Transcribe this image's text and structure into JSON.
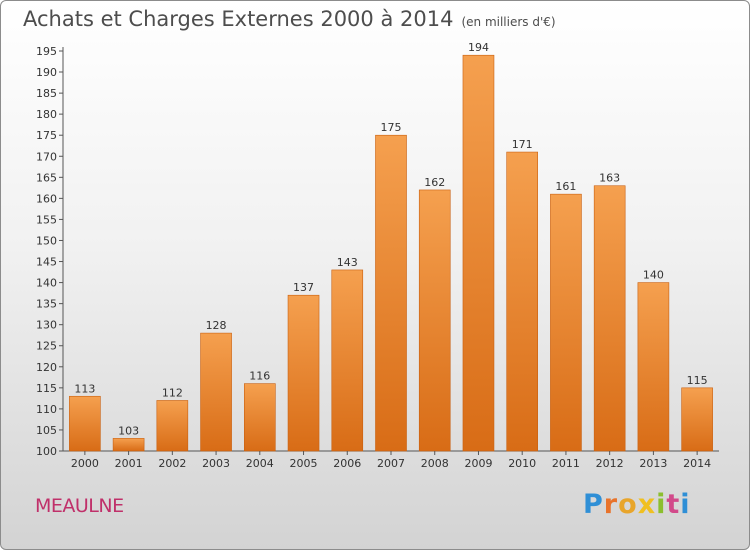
{
  "header": {
    "title": "Achats et Charges Externes 2000 à 2014",
    "subtitle": "(en milliers d'€)"
  },
  "footer": {
    "commune": "MEAULNE",
    "logo": "Proxiti"
  },
  "colors": {
    "bar_top": "#f5a04f",
    "bar_bottom": "#d86c16",
    "bar_edge": "#c96010",
    "commune_text": "#c0306a"
  },
  "chart_data": {
    "type": "bar",
    "title": "Achats et Charges Externes 2000 à 2014",
    "subtitle": "(en milliers d'€)",
    "categories": [
      "2000",
      "2001",
      "2002",
      "2003",
      "2004",
      "2005",
      "2006",
      "2007",
      "2008",
      "2009",
      "2010",
      "2011",
      "2012",
      "2013",
      "2014"
    ],
    "values": [
      113,
      103,
      112,
      128,
      116,
      137,
      143,
      175,
      162,
      194,
      171,
      161,
      163,
      140,
      115
    ],
    "ylim": [
      100,
      195
    ],
    "ytick_step": 5,
    "grid": false,
    "legend": "none",
    "data_labels": true
  }
}
